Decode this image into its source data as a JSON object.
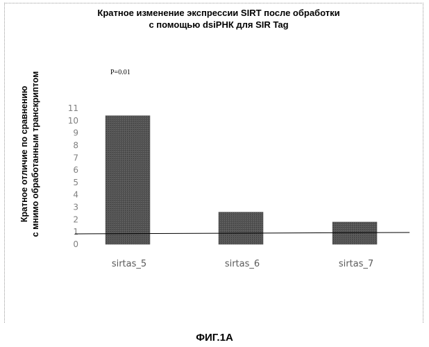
{
  "figure_caption": "ФИГ.1А",
  "annotation": "P=0.01",
  "chart_data": {
    "type": "bar",
    "title_line1": "Кратное изменение экспрессии SIRT после обработки",
    "title_line2": "с помощью dsiРНК для SIR Tag",
    "ylabel_line1": "Кратное отличие по сравнению",
    "ylabel_line2": "с мнимо обработанным транскриптом",
    "xlabel": "",
    "categories": [
      "sirtas_5",
      "sirtas_6",
      "sirtas_7"
    ],
    "values": [
      10.4,
      2.6,
      1.8
    ],
    "ylim": [
      0,
      11
    ],
    "yticks": [
      0,
      1,
      2,
      3,
      4,
      5,
      6,
      7,
      8,
      9,
      10,
      11
    ],
    "reference_line": 0.9,
    "grid": false,
    "legend": "none",
    "bar_color": "#4d4d4d",
    "reference_line_color": "#000000"
  }
}
